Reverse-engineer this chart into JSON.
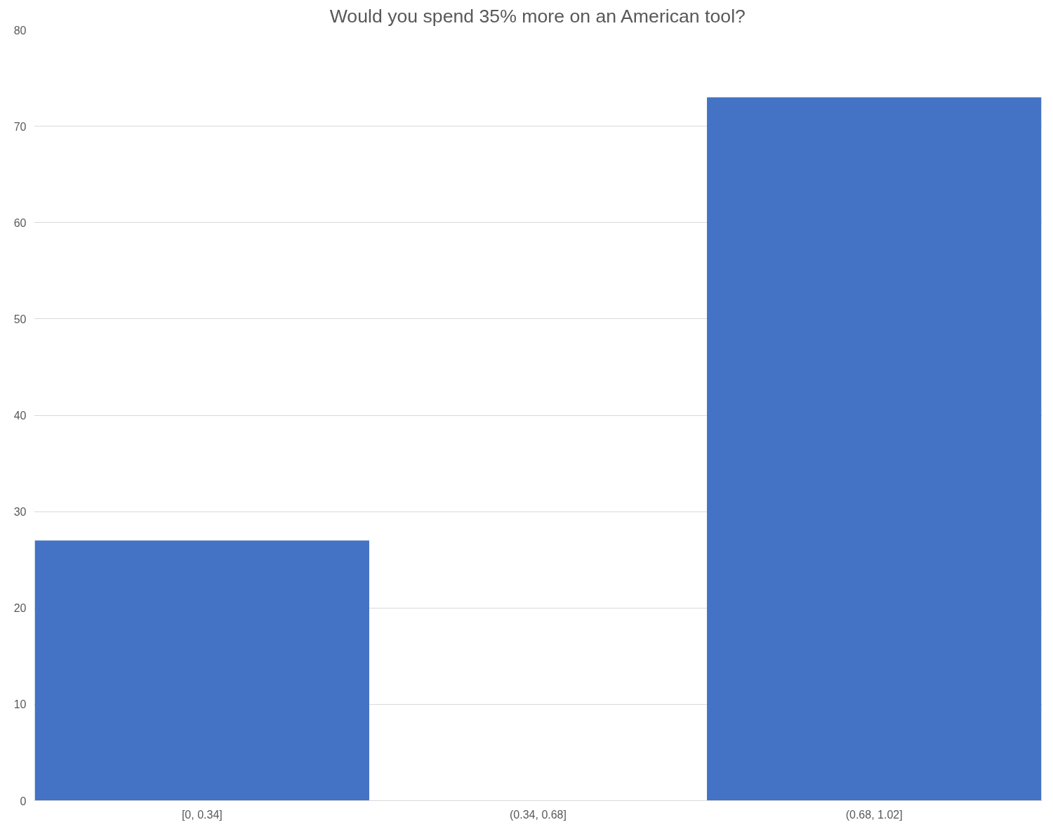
{
  "chart_data": {
    "type": "bar",
    "title": "Would you spend 35% more on an American tool?",
    "categories": [
      "[0, 0.34]",
      "(0.34, 0.68]",
      "(0.68, 1.02]"
    ],
    "values": [
      27,
      0,
      73
    ],
    "color": "#4472c4",
    "ylim": [
      0,
      80
    ],
    "yticks": [
      0,
      10,
      20,
      30,
      40,
      50,
      60,
      70,
      80
    ],
    "grid": "y"
  }
}
